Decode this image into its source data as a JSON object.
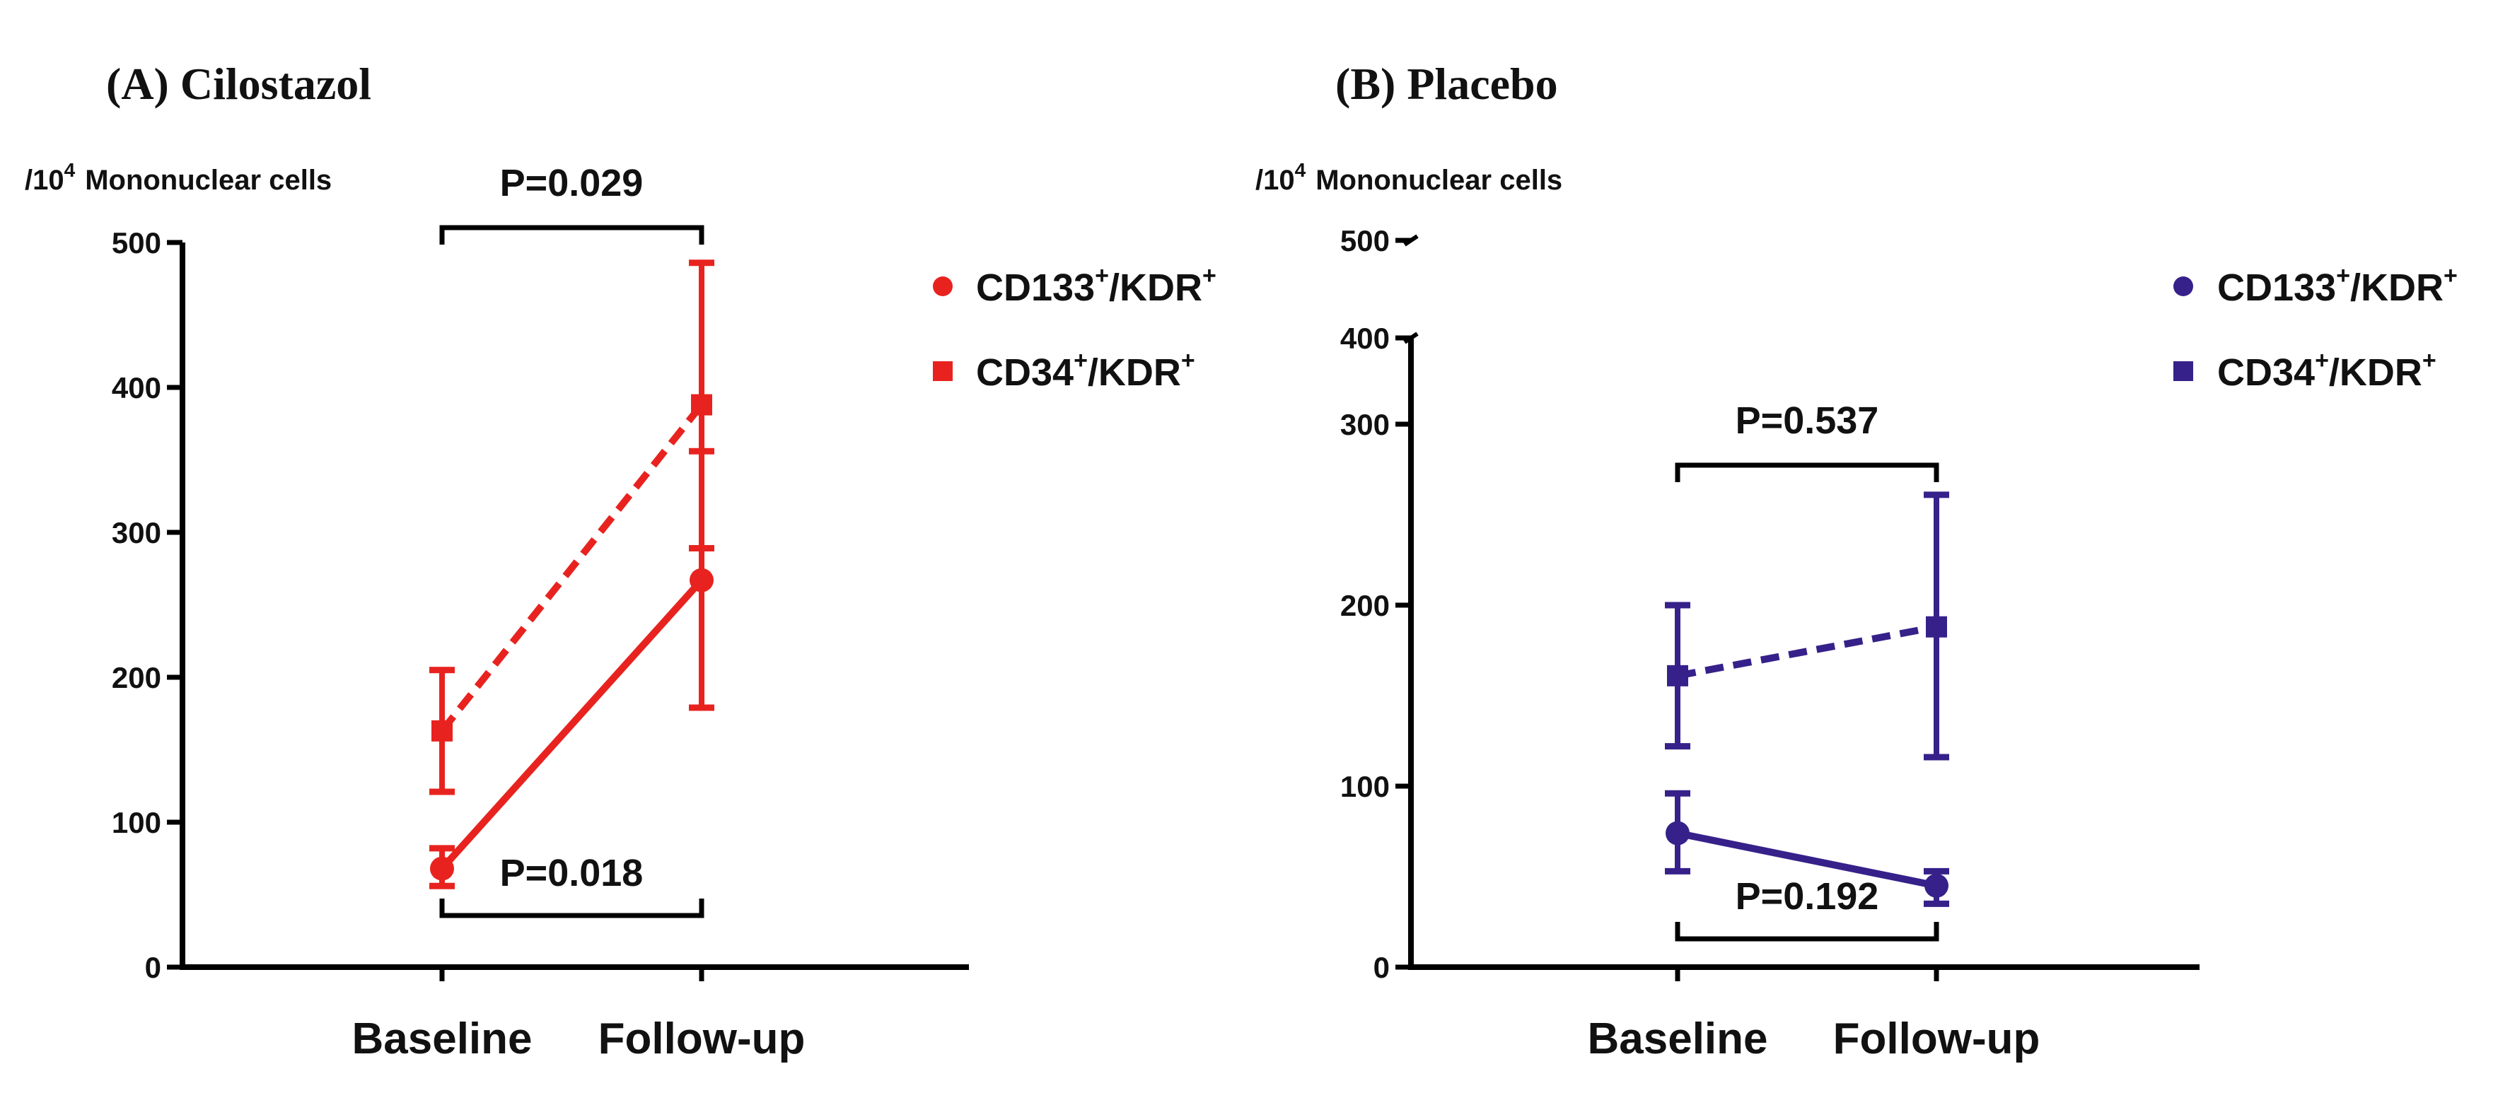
{
  "chart_data": [
    {
      "type": "line",
      "title": "(A) Cilostazol",
      "ylabel": "Mononuclear cells",
      "ylabel_prefix": "/10",
      "ylabel_exp": "4",
      "categories": [
        "Baseline",
        "Follow-up"
      ],
      "ylim": [
        0,
        500
      ],
      "yticks": [
        0,
        100,
        200,
        300,
        400,
        500
      ],
      "color": "#e8231f",
      "series": [
        {
          "name": "CD133+/KDR+",
          "legend": {
            "base": "CD133",
            "sup1": "+",
            "mid": "/KDR",
            "sup2": "+"
          },
          "marker": "circle",
          "dash": false,
          "values": [
            68,
            267
          ],
          "err_low": [
            56,
            179
          ],
          "err_high": [
            82,
            356
          ]
        },
        {
          "name": "CD34+/KDR+",
          "legend": {
            "base": "CD34",
            "sup1": "+",
            "mid": "/KDR",
            "sup2": "+"
          },
          "marker": "square",
          "dash": true,
          "values": [
            163,
            388
          ],
          "err_low": [
            121,
            289
          ],
          "err_high": [
            205,
            486
          ]
        }
      ],
      "annotations": [
        {
          "text": "P=0.029",
          "placement": "above",
          "range": [
            0,
            1
          ]
        },
        {
          "text": "P=0.018",
          "placement": "below",
          "range": [
            0,
            1
          ]
        }
      ]
    },
    {
      "type": "line",
      "title": "(B) Placebo",
      "ylabel": "Mononuclear cells",
      "ylabel_prefix": "/10",
      "ylabel_exp": "4",
      "categories": [
        "Baseline",
        "Follow-up"
      ],
      "ylim": [
        0,
        500
      ],
      "axis_break": [
        350,
        400
      ],
      "yticks": [
        0,
        100,
        200,
        300,
        400,
        500
      ],
      "color": "#36218a",
      "series": [
        {
          "name": "CD133+/KDR+",
          "legend": {
            "base": "CD133",
            "sup1": "+",
            "mid": "/KDR",
            "sup2": "+"
          },
          "marker": "circle",
          "dash": false,
          "values": [
            74,
            45
          ],
          "err_low": [
            53,
            35
          ],
          "err_high": [
            96,
            53
          ]
        },
        {
          "name": "CD34+/KDR+",
          "legend": {
            "base": "CD34",
            "sup1": "+",
            "mid": "/KDR",
            "sup2": "+"
          },
          "marker": "square",
          "dash": true,
          "values": [
            161,
            188
          ],
          "err_low": [
            122,
            116
          ],
          "err_high": [
            200,
            261
          ]
        }
      ],
      "annotations": [
        {
          "text": "P=0.537",
          "placement": "above",
          "range": [
            0,
            1
          ]
        },
        {
          "text": "P=0.192",
          "placement": "below",
          "range": [
            0,
            1
          ]
        }
      ]
    }
  ]
}
